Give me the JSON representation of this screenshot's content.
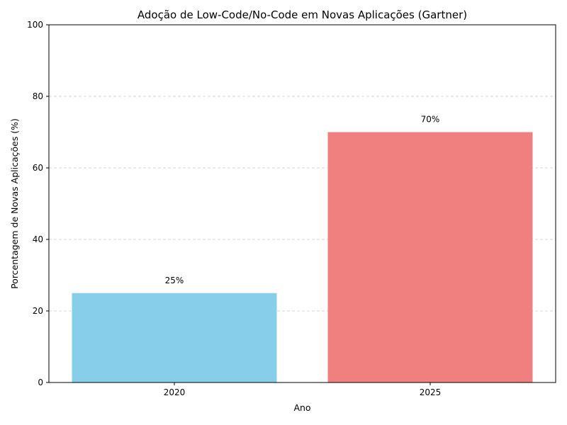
{
  "chart_data": {
    "type": "bar",
    "title": "Adoção de Low-Code/No-Code em Novas Aplicações (Gartner)",
    "xlabel": "Ano",
    "ylabel": "Porcentagem de Novas Aplicações (%)",
    "categories": [
      "2020",
      "2025"
    ],
    "values": [
      25,
      70
    ],
    "value_labels": [
      "25%",
      "70%"
    ],
    "colors": [
      "#87CEEB",
      "#F08080"
    ],
    "ylim": [
      0,
      100
    ],
    "yticks": [
      0,
      20,
      40,
      60,
      80,
      100
    ],
    "ytick_labels": [
      "0",
      "20",
      "40",
      "60",
      "80",
      "100"
    ],
    "grid": "y-dashed"
  }
}
